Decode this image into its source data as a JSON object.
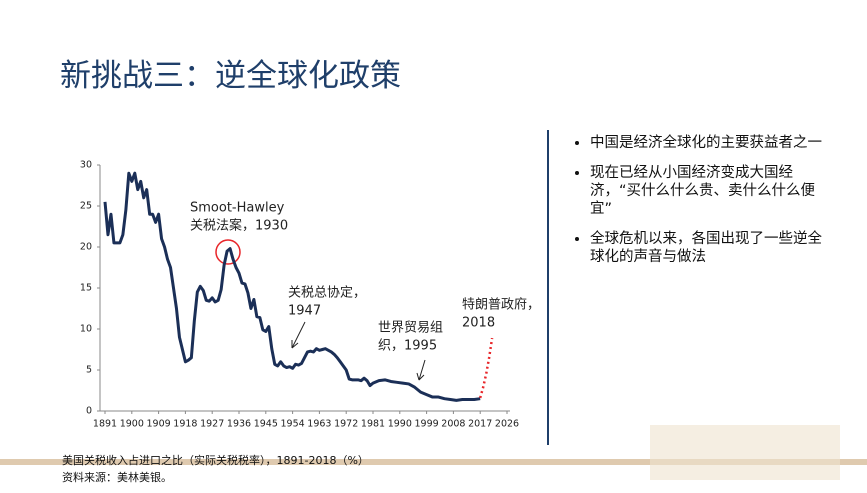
{
  "slide": {
    "title": "新挑战三：逆全球化政策",
    "bullets": [
      "中国是经济全球化的主要获益者之一",
      "现在已经从小国经济变成大国经济，“买什么什么贵、卖什么什么便宜”",
      "全球危机以来，各国出现了一些逆全球化的声音与做法"
    ],
    "caption": "美国关税收入占进口之比（实际关税税率），1891-2018（%）",
    "source": "资料来源：美林美银。"
  },
  "chart_data": {
    "type": "line",
    "xlim": [
      1891,
      2026
    ],
    "xticks": [
      1891,
      1900,
      1909,
      1918,
      1927,
      1936,
      1945,
      1954,
      1963,
      1972,
      1981,
      1990,
      1999,
      2008,
      2017,
      2026
    ],
    "ylim": [
      0,
      30
    ],
    "yticks": [
      0,
      5,
      10,
      15,
      20,
      25,
      30
    ],
    "series": [
      {
        "color": "#1b2f57",
        "style": "solid",
        "x": [
          1891,
          1892,
          1893,
          1894,
          1896,
          1897,
          1898,
          1899,
          1900,
          1901,
          1902,
          1903,
          1904,
          1905,
          1906,
          1907,
          1908,
          1909,
          1910,
          1911,
          1912,
          1913,
          1914,
          1915,
          1916,
          1917,
          1918,
          1919,
          1920,
          1921,
          1922,
          1923,
          1924,
          1925,
          1926,
          1927,
          1928,
          1929,
          1930,
          1931,
          1932,
          1933,
          1934,
          1935,
          1936,
          1937,
          1938,
          1939,
          1940,
          1941,
          1942,
          1943,
          1944,
          1945,
          1946,
          1947,
          1948,
          1949,
          1950,
          1951,
          1952,
          1953,
          1954,
          1955,
          1956,
          1957,
          1958,
          1959,
          1960,
          1961,
          1962,
          1963,
          1964,
          1965,
          1966,
          1967,
          1968,
          1969,
          1970,
          1971,
          1972,
          1973,
          1974,
          1975,
          1976,
          1977,
          1978,
          1979,
          1980,
          1981,
          1983,
          1985,
          1987,
          1989,
          1991,
          1993,
          1995,
          1997,
          1999,
          2001,
          2003,
          2005,
          2007,
          2009,
          2011,
          2013,
          2015,
          2017
        ],
        "values": [
          25.5,
          21.5,
          24,
          20.5,
          20.5,
          21.5,
          24.5,
          29,
          28,
          29,
          27,
          28,
          26,
          27,
          24,
          24,
          23,
          24,
          21,
          20,
          18.5,
          17.5,
          15,
          12.5,
          9,
          7.5,
          6,
          6.2,
          6.5,
          11,
          14.5,
          15.2,
          14.7,
          13.5,
          13.4,
          13.8,
          13.3,
          13.5,
          14.8,
          17.8,
          19.5,
          19.8,
          18.5,
          17.5,
          16.8,
          15.6,
          15.5,
          14.4,
          12.5,
          13.6,
          11.5,
          11.4,
          9.9,
          9.7,
          10.3,
          7.6,
          5.7,
          5.5,
          6,
          5.5,
          5.3,
          5.4,
          5.2,
          5.7,
          5.6,
          5.8,
          6.5,
          7.2,
          7.3,
          7.2,
          7.6,
          7.4,
          7.5,
          7.6,
          7.4,
          7.2,
          6.9,
          6.5,
          6,
          5.5,
          5,
          3.9,
          3.8,
          3.8,
          3.8,
          3.7,
          4,
          3.7,
          3.1,
          3.4,
          3.7,
          3.8,
          3.6,
          3.5,
          3.4,
          3.3,
          2.9,
          2.3,
          2,
          1.7,
          1.7,
          1.5,
          1.4,
          1.3,
          1.4,
          1.4,
          1.4,
          1.5
        ]
      },
      {
        "color": "#e8262a",
        "style": "dotted",
        "x": [
          2017,
          2018,
          2019,
          2020,
          2021
        ],
        "values": [
          1.6,
          2.9,
          4.5,
          6.5,
          8.9
        ]
      }
    ],
    "annotations": [
      {
        "lines": [
          "Smoot-Hawley",
          "关税法案，1930"
        ]
      },
      {
        "lines": [
          "关税总协定，",
          "1947"
        ]
      },
      {
        "lines": [
          "世界贸易组",
          "织，1995"
        ]
      },
      {
        "lines": [
          "特朗普政府，",
          "2018"
        ]
      }
    ]
  }
}
